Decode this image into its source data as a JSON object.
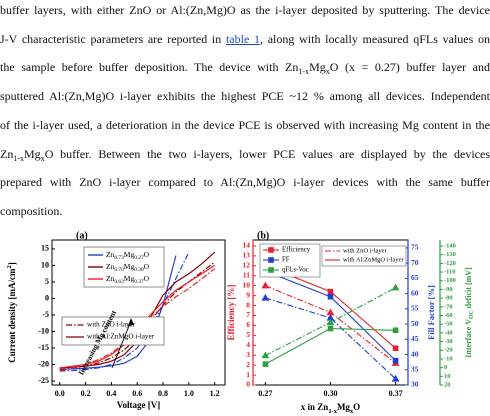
{
  "paragraph": {
    "lines": [
      [
        {
          "text": "buffer layers, with either ZnO or Al:(Zn,Mg)O as the i-layer deposited by sputtering. The device"
        }
      ],
      [
        {
          "text": "J-V characteristic parameters are reported in "
        },
        {
          "text": "table 1",
          "style": "link"
        },
        {
          "text": ", along with locally measured qFLs values on"
        }
      ],
      [
        {
          "text": "the sample before buffer deposition. The device with Zn"
        },
        {
          "text": "1-x",
          "style": "sub"
        },
        {
          "text": "Mg"
        },
        {
          "text": "x",
          "style": "sub"
        },
        {
          "text": "O (x = 0.27) buffer layer and"
        }
      ],
      [
        {
          "text": "sputtered Al:(Zn,Mg)O i-layer exhibits the highest PCE ~12 % among all devices. Independent"
        }
      ],
      [
        {
          "text": "of the i-layer used, a deterioration in the device PCE is observed with increasing Mg content in the"
        }
      ],
      [
        {
          "text": "Zn"
        },
        {
          "text": "1-x",
          "style": "sub"
        },
        {
          "text": "Mg"
        },
        {
          "text": "x",
          "style": "sub"
        },
        {
          "text": "O buffer. Between the two i-layers, lower PCE values are displayed by the devices"
        }
      ],
      [
        {
          "text": "prepared with ZnO i-layer compared to Al:(Zn,Mg)O i-layer devices with the same buffer"
        }
      ],
      [
        {
          "text": "composition."
        }
      ]
    ]
  },
  "chart_data": [
    {
      "type": "line",
      "label": "(a)",
      "x_label": [
        {
          "text": "Voltage [V]"
        }
      ],
      "y_label": [
        {
          "text": "Current density [mA/cm"
        },
        {
          "text": "2",
          "style": "sup"
        },
        {
          "text": "]"
        }
      ],
      "annotation": "Increasing Mg content",
      "x": [
        0,
        0.1,
        0.2,
        0.3,
        0.4,
        0.5,
        0.6,
        0.7,
        0.8,
        0.9,
        1.0,
        1.1,
        1.2
      ],
      "xlim": [
        -0.06,
        1.28
      ],
      "xticks": [
        {
          "value": 0,
          "label": "0.0"
        },
        0.2,
        0.4,
        0.6,
        0.8,
        {
          "value": 1,
          "label": "1.0"
        },
        1.2
      ],
      "ylim": [
        -26.2,
        17.7
      ],
      "yticks": [
        -25,
        -20,
        -15,
        -10,
        -5,
        0,
        5,
        10,
        15
      ],
      "series": [
        {
          "color": "#1f3fd0",
          "dash": "solid",
          "values": [
            -21.5,
            -21.3,
            -21.1,
            -20.8,
            -20.4,
            -19.6,
            -17.5,
            -12.5,
            -2,
            13,
            null,
            null,
            null
          ]
        },
        {
          "color": "#1f3fd0",
          "dash": "dashdot",
          "values": [
            -22,
            -21.8,
            -21.5,
            -21,
            -20,
            -18,
            -15,
            -9.5,
            -2,
            6,
            14,
            null,
            null
          ]
        },
        {
          "color": "#8b0000",
          "dash": "solid",
          "values": [
            -21,
            -20.8,
            -20.5,
            -20,
            -19,
            -17,
            -13,
            -6,
            1,
            5,
            7.5,
            10.5,
            14
          ]
        },
        {
          "color": "#8b0000",
          "dash": "dashdot",
          "values": [
            -21.5,
            -21,
            -20.5,
            -19.5,
            -18,
            -15.5,
            -12,
            -7,
            -2,
            2,
            5,
            8,
            11
          ]
        },
        {
          "color": "#e8202a",
          "dash": "solid",
          "values": [
            -21,
            -20.5,
            -20,
            -19,
            -17,
            -14,
            -10,
            -5,
            -1,
            2.5,
            5,
            7.5,
            10
          ]
        },
        {
          "color": "#e8202a",
          "dash": "dashdot",
          "values": [
            -22,
            -21,
            -20,
            -18.5,
            -16.5,
            -13.5,
            -10,
            -6,
            -2.5,
            0.5,
            3,
            6,
            9
          ]
        }
      ],
      "legend": [
        {
          "name": [
            {
              "text": "Zn"
            },
            {
              "text": "0.73",
              "style": "sub"
            },
            {
              "text": "Mg"
            },
            {
              "text": "0.27",
              "style": "sub"
            },
            {
              "text": "O"
            }
          ],
          "color": "#1f3fd0"
        },
        {
          "name": [
            {
              "text": "Zn"
            },
            {
              "text": "0.70",
              "style": "sub"
            },
            {
              "text": "Mg"
            },
            {
              "text": "0.30",
              "style": "sub"
            },
            {
              "text": "O"
            }
          ],
          "color": "#8b0000"
        },
        {
          "name": [
            {
              "text": "Zn"
            },
            {
              "text": "0.63",
              "style": "sub"
            },
            {
              "text": "Mg"
            },
            {
              "text": "0.37",
              "style": "sub"
            },
            {
              "text": "O"
            }
          ],
          "color": "#e8202a"
        }
      ],
      "style_legend": [
        {
          "name": "with ZnO i-layer",
          "dash": "dashdot",
          "color": "#8b0000"
        },
        {
          "name": "with Al:ZnMgO i-layer",
          "dash": "solid",
          "color": "#8b0000"
        }
      ]
    },
    {
      "type": "line",
      "label": "(b)",
      "categories": [
        "0.27",
        "0.30",
        "0.37"
      ],
      "x_label": [
        {
          "text": "x in Zn"
        },
        {
          "text": "1-x",
          "style": "sub"
        },
        {
          "text": "Mg"
        },
        {
          "text": "x",
          "style": "sub"
        },
        {
          "text": "O"
        }
      ],
      "y_label": [
        {
          "text": "Efficiency [%]"
        }
      ],
      "y_color": "#e8202a",
      "ylim": [
        0,
        14.6
      ],
      "yticks": [
        0,
        1,
        2,
        3,
        4,
        5,
        6,
        7,
        8,
        9,
        10,
        11,
        12,
        13,
        14
      ],
      "y2_label": [
        {
          "text": "Fill Factor [%]"
        }
      ],
      "y2_color": "#1f3fd0",
      "y2lim": [
        30,
        77.6
      ],
      "y2ticks": [
        30,
        35,
        40,
        45,
        50,
        55,
        60,
        65,
        70,
        75
      ],
      "y3_label": [
        {
          "text": "Interface V"
        },
        {
          "text": "OC",
          "style": "sub"
        },
        {
          "text": " deficit [mV]"
        }
      ],
      "y3_color": "#2e9e3e",
      "y3lim": [
        20,
        -146.9
      ],
      "y3ticks": [
        -140,
        -130,
        -120,
        -110,
        -100,
        -90,
        -80,
        -70,
        -60,
        -50,
        -40,
        -30,
        -20,
        -10,
        0,
        10,
        20
      ],
      "series": [
        {
          "axis": "y",
          "color": "#e8202a",
          "dash": "solid",
          "marker": "square",
          "values": [
            12,
            9.4,
            3.7
          ]
        },
        {
          "axis": "y",
          "color": "#e8202a",
          "dash": "dashdot",
          "marker": "triangle",
          "values": [
            10,
            7.3,
            2.2
          ]
        },
        {
          "axis": "y2",
          "color": "#1f3fd0",
          "dash": "solid",
          "marker": "square",
          "values": [
            67.4,
            59,
            38
          ]
        },
        {
          "axis": "y2",
          "color": "#1f3fd0",
          "dash": "dashdot",
          "marker": "triangle",
          "values": [
            58.6,
            52,
            32
          ]
        },
        {
          "axis": "y3",
          "color": "#2e9e3e",
          "dash": "solid",
          "marker": "square",
          "values": [
            -4,
            -45,
            -43
          ]
        },
        {
          "axis": "y3",
          "color": "#2e9e3e",
          "dash": "dashdot",
          "marker": "triangle",
          "values": [
            -14,
            -52,
            -92
          ]
        }
      ],
      "legend": [
        {
          "name": "Efficiency",
          "color": "#e8202a",
          "marker": "square"
        },
        {
          "name": "FF",
          "color": "#1f3fd0",
          "marker": "square"
        },
        {
          "name": "qFLs-Voc",
          "color": "#2e9e3e",
          "marker": "square"
        }
      ],
      "style_legend": [
        {
          "name": "with ZnO i-layer",
          "dash": "dashdot",
          "color": "#e8202a"
        },
        {
          "name": "with Al:ZnMgO i-layer",
          "dash": "solid",
          "color": "#e8202a"
        }
      ]
    }
  ]
}
